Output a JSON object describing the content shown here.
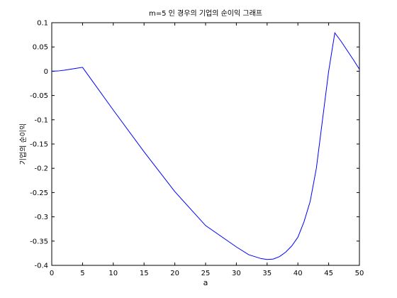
{
  "chart_data": {
    "type": "line",
    "title": "m=5 인 경우의 기업의 순이익 그래프",
    "xlabel": "a",
    "ylabel": "기업의 순이익",
    "xlim": [
      0,
      50
    ],
    "ylim": [
      -0.4,
      0.1
    ],
    "xticks": [
      "0",
      "5",
      "10",
      "15",
      "20",
      "25",
      "30",
      "35",
      "40",
      "45",
      "50"
    ],
    "yticks": [
      "0.1",
      "0.05",
      "0",
      "-0.05",
      "-0.1",
      "-0.15",
      "-0.2",
      "-0.25",
      "-0.3",
      "-0.35",
      "-0.4"
    ],
    "grid": false,
    "line_color": "#0000ff",
    "series": [
      {
        "x": [
          0,
          1,
          2,
          3,
          4,
          5,
          10,
          15,
          20,
          25,
          30,
          32,
          34,
          35,
          36,
          37,
          38,
          39,
          40,
          41,
          42,
          43,
          44,
          45,
          46,
          47,
          48,
          49,
          50
        ],
        "y": [
          0,
          0.0005,
          0.002,
          0.004,
          0.006,
          0.008,
          -0.08,
          -0.166,
          -0.248,
          -0.318,
          -0.362,
          -0.378,
          -0.386,
          -0.388,
          -0.387,
          -0.382,
          -0.373,
          -0.36,
          -0.342,
          -0.31,
          -0.268,
          -0.2,
          -0.1,
          0.0,
          0.079,
          0.062,
          0.043,
          0.024,
          0.004
        ]
      }
    ]
  }
}
